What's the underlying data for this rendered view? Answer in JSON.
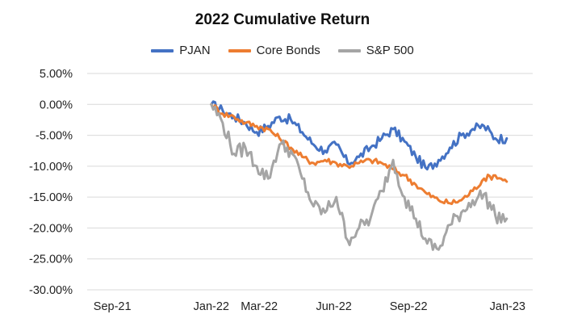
{
  "chart_data": {
    "type": "line",
    "title": "2022 Cumulative Return",
    "ylim": [
      -0.3,
      0.05
    ],
    "y_ticks": [
      "5.00%",
      "0.00%",
      "-5.00%",
      "-10.00%",
      "-15.00%",
      "-20.00%",
      "-25.00%",
      "-30.00%"
    ],
    "y_tick_values": [
      0.05,
      0.0,
      -0.05,
      -0.1,
      -0.15,
      -0.2,
      -0.25,
      -0.3
    ],
    "x_ticks": [
      "Sep-21",
      "Jan-22",
      "Mar-22",
      "Jun-22",
      "Sep-22",
      "Jan-23"
    ],
    "x_tick_dates": [
      "2021-09-01",
      "2022-01-01",
      "2022-03-01",
      "2022-06-01",
      "2022-09-01",
      "2023-01-01"
    ],
    "xlim": [
      "2021-08-01",
      "2023-02-01"
    ],
    "grid": "horizontal",
    "legend_position": "top",
    "series": [
      {
        "name": "PJAN",
        "color": "#4472C4",
        "points": [
          [
            "2022-01-01",
            0.0
          ],
          [
            "2022-01-15",
            -0.01
          ],
          [
            "2022-01-29",
            -0.02
          ],
          [
            "2022-02-12",
            -0.03
          ],
          [
            "2022-02-26",
            -0.045
          ],
          [
            "2022-03-12",
            -0.035
          ],
          [
            "2022-03-26",
            -0.02
          ],
          [
            "2022-04-09",
            -0.025
          ],
          [
            "2022-04-23",
            -0.045
          ],
          [
            "2022-05-07",
            -0.065
          ],
          [
            "2022-05-21",
            -0.075
          ],
          [
            "2022-06-04",
            -0.065
          ],
          [
            "2022-06-18",
            -0.095
          ],
          [
            "2022-07-02",
            -0.085
          ],
          [
            "2022-07-16",
            -0.07
          ],
          [
            "2022-07-30",
            -0.055
          ],
          [
            "2022-08-13",
            -0.04
          ],
          [
            "2022-08-27",
            -0.06
          ],
          [
            "2022-09-10",
            -0.085
          ],
          [
            "2022-09-24",
            -0.105
          ],
          [
            "2022-10-08",
            -0.09
          ],
          [
            "2022-10-22",
            -0.07
          ],
          [
            "2022-11-05",
            -0.05
          ],
          [
            "2022-11-19",
            -0.04
          ],
          [
            "2022-12-03",
            -0.035
          ],
          [
            "2022-12-17",
            -0.055
          ],
          [
            "2022-12-31",
            -0.055
          ]
        ]
      },
      {
        "name": "Core Bonds",
        "color": "#ED7D31",
        "points": [
          [
            "2022-01-01",
            0.0
          ],
          [
            "2022-01-15",
            -0.015
          ],
          [
            "2022-01-29",
            -0.02
          ],
          [
            "2022-02-12",
            -0.03
          ],
          [
            "2022-02-26",
            -0.035
          ],
          [
            "2022-03-12",
            -0.04
          ],
          [
            "2022-03-26",
            -0.055
          ],
          [
            "2022-04-09",
            -0.07
          ],
          [
            "2022-04-23",
            -0.085
          ],
          [
            "2022-05-07",
            -0.095
          ],
          [
            "2022-05-21",
            -0.09
          ],
          [
            "2022-06-04",
            -0.095
          ],
          [
            "2022-06-18",
            -0.1
          ],
          [
            "2022-07-02",
            -0.095
          ],
          [
            "2022-07-16",
            -0.09
          ],
          [
            "2022-07-30",
            -0.095
          ],
          [
            "2022-08-13",
            -0.105
          ],
          [
            "2022-08-27",
            -0.115
          ],
          [
            "2022-09-10",
            -0.13
          ],
          [
            "2022-09-24",
            -0.145
          ],
          [
            "2022-10-08",
            -0.155
          ],
          [
            "2022-10-22",
            -0.16
          ],
          [
            "2022-11-05",
            -0.155
          ],
          [
            "2022-11-19",
            -0.14
          ],
          [
            "2022-12-03",
            -0.12
          ],
          [
            "2022-12-17",
            -0.115
          ],
          [
            "2022-12-31",
            -0.125
          ]
        ]
      },
      {
        "name": "S&P 500",
        "color": "#A5A5A5",
        "points": [
          [
            "2022-01-01",
            0.0
          ],
          [
            "2022-01-15",
            -0.03
          ],
          [
            "2022-01-29",
            -0.08
          ],
          [
            "2022-02-12",
            -0.07
          ],
          [
            "2022-02-26",
            -0.1
          ],
          [
            "2022-03-12",
            -0.12
          ],
          [
            "2022-03-26",
            -0.065
          ],
          [
            "2022-04-09",
            -0.075
          ],
          [
            "2022-04-23",
            -0.12
          ],
          [
            "2022-05-07",
            -0.165
          ],
          [
            "2022-05-21",
            -0.175
          ],
          [
            "2022-06-04",
            -0.15
          ],
          [
            "2022-06-18",
            -0.22
          ],
          [
            "2022-07-02",
            -0.2
          ],
          [
            "2022-07-16",
            -0.185
          ],
          [
            "2022-07-30",
            -0.14
          ],
          [
            "2022-08-13",
            -0.09
          ],
          [
            "2022-08-27",
            -0.15
          ],
          [
            "2022-09-10",
            -0.185
          ],
          [
            "2022-09-24",
            -0.225
          ],
          [
            "2022-10-08",
            -0.235
          ],
          [
            "2022-10-22",
            -0.195
          ],
          [
            "2022-11-05",
            -0.175
          ],
          [
            "2022-11-19",
            -0.155
          ],
          [
            "2022-12-03",
            -0.145
          ],
          [
            "2022-12-17",
            -0.18
          ],
          [
            "2022-12-31",
            -0.185
          ]
        ]
      }
    ]
  }
}
